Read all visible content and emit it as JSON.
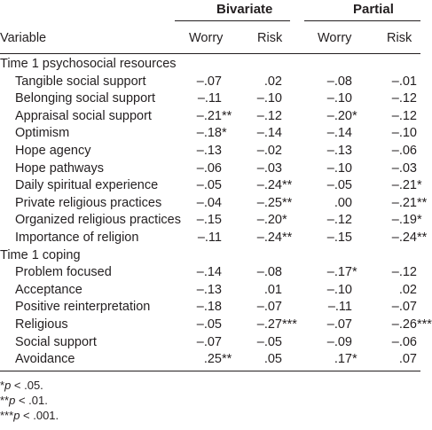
{
  "table": {
    "group_headers": [
      "Bivariate",
      "Partial"
    ],
    "col_headers": [
      "Variable",
      "Worry",
      "Risk",
      "Worry",
      "Risk"
    ],
    "sections": [
      {
        "title": "Time 1 psychosocial resources",
        "rows": [
          {
            "label": "Tangible social support",
            "values": [
              "–.07",
              ".02",
              "–.08",
              "–.01"
            ]
          },
          {
            "label": "Belonging social support",
            "values": [
              "–.11",
              "–.10",
              "–.10",
              "–.12"
            ]
          },
          {
            "label": "Appraisal social support",
            "values": [
              "–.21**",
              "–.12",
              "–.20*",
              "–.12"
            ]
          },
          {
            "label": "Optimism",
            "values": [
              "–.18*",
              "–.14",
              "–.14",
              "–.10"
            ]
          },
          {
            "label": "Hope agency",
            "values": [
              "–.13",
              "–.02",
              "–.13",
              "–.06"
            ]
          },
          {
            "label": "Hope pathways",
            "values": [
              "–.06",
              "–.03",
              "–.10",
              "–.03"
            ]
          },
          {
            "label": "Daily spiritual experience",
            "values": [
              "–.05",
              "–.24**",
              "–.05",
              "–.21*"
            ]
          },
          {
            "label": "Private religious practices",
            "values": [
              "–.04",
              "–.25**",
              ".00",
              "–.21**"
            ]
          },
          {
            "label": "Organized religious practices",
            "values": [
              "–.15",
              "–.20*",
              "–.12",
              "–.19*"
            ]
          },
          {
            "label": "Importance of religion",
            "values": [
              "–.11",
              "–.24**",
              "–.15",
              "–.24**"
            ]
          }
        ]
      },
      {
        "title": "Time 1 coping",
        "rows": [
          {
            "label": "Problem focused",
            "values": [
              "–.14",
              "–.08",
              "–.17*",
              "–.12"
            ]
          },
          {
            "label": "Acceptance",
            "values": [
              "–.13",
              ".01",
              "–.10",
              ".02"
            ]
          },
          {
            "label": "Positive reinterpretation",
            "values": [
              "–.18",
              "–.07",
              "–.11",
              "–.07"
            ]
          },
          {
            "label": "Religious",
            "values": [
              "–.05",
              "–.27***",
              "–.07",
              "–.26***"
            ]
          },
          {
            "label": "Social support",
            "values": [
              "–.07",
              "–.05",
              "–.09",
              "–.06"
            ]
          },
          {
            "label": "Avoidance",
            "values": [
              ".25**",
              ".05",
              ".17*",
              ".07"
            ]
          }
        ]
      }
    ],
    "footnotes": [
      {
        "stars": "*",
        "p": "p",
        "rest": " < .05."
      },
      {
        "stars": "**",
        "p": "p",
        "rest": " < .01."
      },
      {
        "stars": "***",
        "p": "p",
        "rest": " < .001."
      }
    ]
  }
}
